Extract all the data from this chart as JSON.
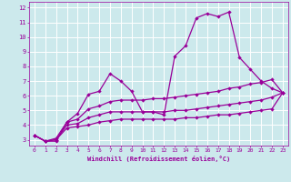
{
  "xlabel": "Windchill (Refroidissement éolien,°C)",
  "x": [
    0,
    1,
    2,
    3,
    4,
    5,
    6,
    7,
    8,
    9,
    10,
    11,
    12,
    13,
    14,
    15,
    16,
    17,
    18,
    19,
    20,
    21,
    22,
    23
  ],
  "line1": [
    3.3,
    2.9,
    2.9,
    4.2,
    4.8,
    6.1,
    6.3,
    7.5,
    7.0,
    6.3,
    4.9,
    4.9,
    4.7,
    8.7,
    9.4,
    11.3,
    11.6,
    11.4,
    11.7,
    8.6,
    7.8,
    7.0,
    6.5,
    6.2
  ],
  "line2": [
    3.3,
    2.9,
    3.1,
    4.2,
    4.4,
    5.1,
    5.3,
    5.6,
    5.7,
    5.7,
    5.7,
    5.8,
    5.8,
    5.9,
    6.0,
    6.1,
    6.2,
    6.3,
    6.5,
    6.6,
    6.8,
    6.9,
    7.1,
    6.2
  ],
  "line3": [
    3.3,
    2.9,
    3.0,
    4.0,
    4.1,
    4.5,
    4.7,
    4.9,
    4.9,
    4.9,
    4.9,
    4.9,
    4.9,
    5.0,
    5.0,
    5.1,
    5.2,
    5.3,
    5.4,
    5.5,
    5.6,
    5.7,
    5.9,
    6.2
  ],
  "line4": [
    3.3,
    2.9,
    3.0,
    3.8,
    3.9,
    4.0,
    4.2,
    4.3,
    4.4,
    4.4,
    4.4,
    4.4,
    4.4,
    4.4,
    4.5,
    4.5,
    4.6,
    4.7,
    4.7,
    4.8,
    4.9,
    5.0,
    5.1,
    6.2
  ],
  "line_color": "#990099",
  "bg_color": "#cce9ec",
  "grid_color": "#ffffff",
  "ylim": [
    2.6,
    12.4
  ],
  "xlim": [
    -0.5,
    23.5
  ],
  "yticks": [
    3,
    4,
    5,
    6,
    7,
    8,
    9,
    10,
    11,
    12
  ],
  "xticks": [
    0,
    1,
    2,
    3,
    4,
    5,
    6,
    7,
    8,
    9,
    10,
    11,
    12,
    13,
    14,
    15,
    16,
    17,
    18,
    19,
    20,
    21,
    22,
    23
  ]
}
